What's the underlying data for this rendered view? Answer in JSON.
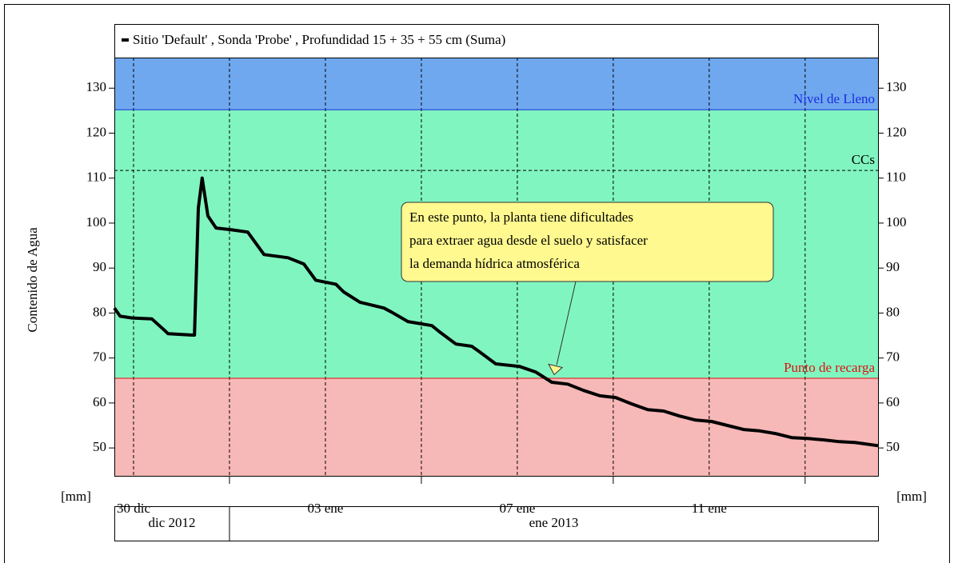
{
  "chart_data": {
    "type": "line",
    "y_label": "Contenido de Agua",
    "y_unit_left": "[mm]",
    "y_unit_right": "[mm]",
    "xlim": [
      -0.4,
      15.52
    ],
    "xticks": [
      {
        "value": 0,
        "label": "30 dic"
      },
      {
        "value": 4,
        "label": "03 ene"
      },
      {
        "value": 8,
        "label": "07 ene"
      },
      {
        "value": 12,
        "label": "11 ene"
      }
    ],
    "x_minor_grid": [
      2,
      6,
      10,
      14
    ],
    "months": [
      "dic 2012",
      "ene 2013"
    ],
    "month_boundaries": [
      2
    ],
    "ylim": [
      43.8,
      136.8
    ],
    "yticks": [
      50,
      60,
      70,
      80,
      90,
      100,
      110,
      120,
      130
    ],
    "grid": true,
    "bands": [
      {
        "from": 125.2,
        "to": 136.8,
        "color": "#6fa8ef"
      },
      {
        "from": 65.5,
        "to": 125.2,
        "color": "#80f5c0"
      },
      {
        "from": 43.8,
        "to": 65.5,
        "color": "#f7b8b8"
      }
    ],
    "levels": [
      {
        "label": "Nivel de Lleno",
        "value": 125.2,
        "color": "#1a2ee0",
        "dashed": false
      },
      {
        "label": "CCs",
        "value": 111.7,
        "color": "#000000",
        "dashed": true
      },
      {
        "label": "Punto de recarga",
        "value": 65.5,
        "color": "#e01010",
        "dashed": false
      }
    ],
    "series": [
      {
        "name": "Sitio  'Default' , Sonda 'Probe' , Profundidad 15 + 35 + 55 cm (Suma)",
        "color": "#000000",
        "x": [
          -0.4,
          -0.28,
          -0.03,
          0.38,
          0.63,
          0.72,
          1.22,
          1.27,
          1.35,
          1.43,
          1.55,
          1.72,
          2.05,
          2.38,
          2.72,
          3.22,
          3.55,
          3.8,
          4.22,
          4.38,
          4.72,
          5.22,
          5.38,
          5.72,
          6.22,
          6.38,
          6.72,
          7.05,
          7.22,
          7.55,
          8.05,
          8.38,
          8.72,
          9.05,
          9.38,
          9.72,
          10.05,
          10.38,
          10.72,
          11.05,
          11.38,
          11.72,
          12.05,
          12.38,
          12.72,
          13.05,
          13.38,
          13.72,
          14.05,
          14.38,
          14.72,
          15.05,
          15.52
        ],
        "values": [
          81.1,
          79.3,
          78.9,
          78.7,
          76.3,
          75.4,
          75.1,
          75.1,
          103.3,
          110,
          101.6,
          98.9,
          98.5,
          98,
          93,
          92.3,
          90.9,
          87.3,
          86.4,
          84.7,
          82.4,
          81.1,
          80.2,
          78.1,
          77.2,
          75.8,
          73.1,
          72.6,
          71.3,
          68.7,
          68.1,
          66.9,
          64.6,
          64.2,
          62.8,
          61.6,
          61.2,
          59.8,
          58.5,
          58.2,
          57.1,
          56.2,
          55.9,
          55.0,
          54.1,
          53.8,
          53.2,
          52.3,
          52.1,
          51.8,
          51.4,
          51.2,
          50.5
        ]
      }
    ],
    "annotation": {
      "lines": [
        "En este punto, la planta tiene dificultades",
        "para extraer agua desde el suelo y satisfacer",
        "la demanda hídrica atmosférica"
      ],
      "x": 8.77,
      "y": 66.3
    }
  }
}
